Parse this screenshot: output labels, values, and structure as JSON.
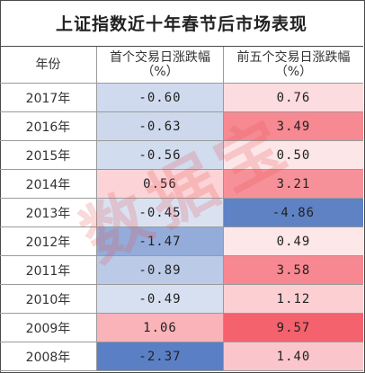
{
  "title": "上证指数近十年春节后市场表现",
  "watermark": "数据宝",
  "chart_data": {
    "type": "table",
    "title": "上证指数近十年春节后市场表现",
    "columns": {
      "year": "年份",
      "first_day_line1": "首个交易日涨跌幅",
      "first_day_line2": "（%）",
      "first5_line1": "前五个交易日涨跌幅",
      "first5_line2": "（%）"
    },
    "rows": [
      {
        "year": "2017年",
        "first_day": "-0.60",
        "first5": "0.76"
      },
      {
        "year": "2016年",
        "first_day": "-0.63",
        "first5": "3.49"
      },
      {
        "year": "2015年",
        "first_day": "-0.56",
        "first5": "0.50"
      },
      {
        "year": "2014年",
        "first_day": "0.56",
        "first5": "3.21"
      },
      {
        "year": "2013年",
        "first_day": "-0.45",
        "first5": "-4.86"
      },
      {
        "year": "2012年",
        "first_day": "-1.47",
        "first5": "0.49"
      },
      {
        "year": "2011年",
        "first_day": "-0.89",
        "first5": "3.58"
      },
      {
        "year": "2010年",
        "first_day": "-0.49",
        "first5": "1.12"
      },
      {
        "year": "2009年",
        "first_day": "1.06",
        "first5": "9.57"
      },
      {
        "year": "2008年",
        "first_day": "-2.37",
        "first5": "1.40"
      }
    ],
    "color_scale": {
      "negative": "#5b7fc4",
      "neutral": "#ffffff",
      "positive": "#f4626e"
    }
  }
}
